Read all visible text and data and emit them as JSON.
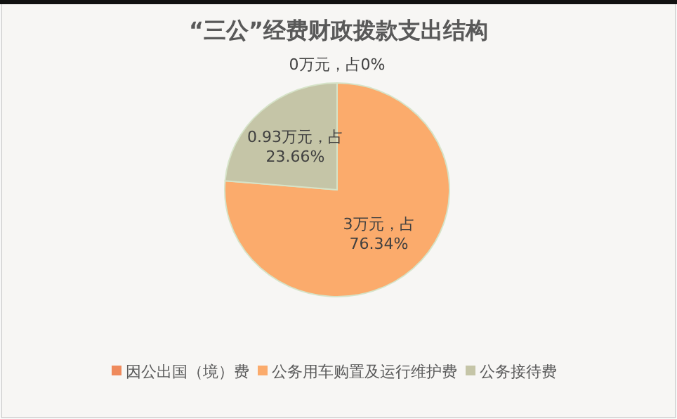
{
  "chart_data": {
    "type": "pie",
    "title": "“三公”经费财政拨款支出结构",
    "categories": [
      "因公出国（境）费",
      "公务用车购置及运行维护费",
      "公务接待费"
    ],
    "values": [
      0,
      3,
      0.93
    ],
    "colors": [
      "#ef8a5c",
      "#fbab6c",
      "#c5c5a7"
    ],
    "value_labels": [
      "0万元，占0%",
      "3万元，占76.34%",
      "0.93万元，占23.66%"
    ],
    "legend": "bottom"
  }
}
